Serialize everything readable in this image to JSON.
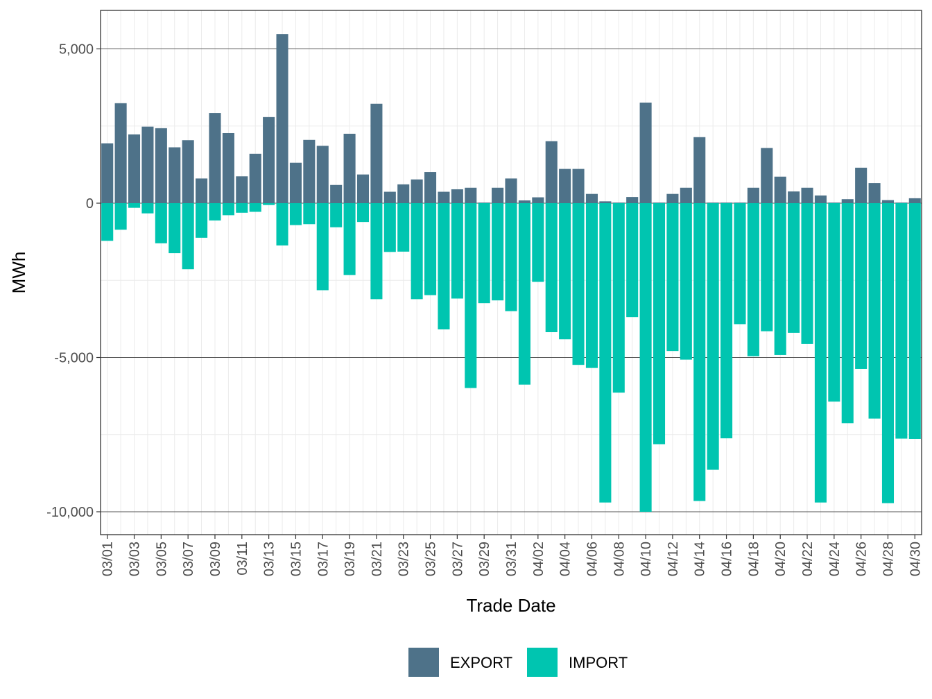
{
  "chart_data": {
    "type": "bar",
    "stacked": "diverging",
    "xlabel": "Trade Date",
    "ylabel": "MWh",
    "ylim": [
      -10000,
      6000
    ],
    "y_ticks": [
      5000,
      0,
      -5000,
      -10000
    ],
    "y_tick_labels": [
      "5,000",
      "0",
      "-5,000",
      "-10,000"
    ],
    "grid": true,
    "legend_position": "bottom",
    "categories": [
      "03/01",
      "03/02",
      "03/03",
      "03/04",
      "03/05",
      "03/06",
      "03/07",
      "03/08",
      "03/09",
      "03/10",
      "03/11",
      "03/12",
      "03/13",
      "03/14",
      "03/15",
      "03/16",
      "03/17",
      "03/18",
      "03/19",
      "03/20",
      "03/21",
      "03/22",
      "03/23",
      "03/24",
      "03/25",
      "03/26",
      "03/27",
      "03/28",
      "03/29",
      "03/30",
      "03/31",
      "04/01",
      "04/02",
      "04/03",
      "04/04",
      "04/05",
      "04/06",
      "04/07",
      "04/08",
      "04/09",
      "04/10",
      "04/11",
      "04/12",
      "04/13",
      "04/14",
      "04/15",
      "04/16",
      "04/17",
      "04/18",
      "04/19",
      "04/20",
      "04/21",
      "04/22",
      "04/23",
      "04/24",
      "04/25",
      "04/26",
      "04/27",
      "04/28",
      "04/29",
      "04/30"
    ],
    "x_tick_labels": [
      "03/01",
      "03/03",
      "03/05",
      "03/07",
      "03/09",
      "03/11",
      "03/13",
      "03/15",
      "03/17",
      "03/19",
      "03/21",
      "03/23",
      "03/25",
      "03/27",
      "03/29",
      "03/31",
      "04/02",
      "04/04",
      "04/06",
      "04/08",
      "04/10",
      "04/12",
      "04/14",
      "04/16",
      "04/18",
      "04/20",
      "04/22",
      "04/24",
      "04/26",
      "04/28",
      "04/30"
    ],
    "series": [
      {
        "name": "EXPORT",
        "color": "#4e7289",
        "values": [
          1940,
          3240,
          2230,
          2480,
          2430,
          1810,
          2040,
          800,
          2920,
          2270,
          870,
          1600,
          2790,
          5480,
          1310,
          2050,
          1860,
          590,
          2250,
          930,
          3220,
          370,
          610,
          770,
          1010,
          370,
          450,
          500,
          20,
          500,
          800,
          90,
          190,
          2010,
          1110,
          1110,
          300,
          60,
          20,
          200,
          3260,
          20,
          300,
          500,
          2140,
          20,
          20,
          20,
          500,
          1790,
          860,
          380,
          500,
          250,
          20,
          130,
          1150,
          650,
          100,
          20,
          160
        ]
      },
      {
        "name": "IMPORT",
        "color": "#00c5b0",
        "values": [
          -1220,
          -860,
          -150,
          -330,
          -1300,
          -1620,
          -2140,
          -1120,
          -560,
          -390,
          -310,
          -280,
          -60,
          -1370,
          -710,
          -680,
          -2820,
          -780,
          -2330,
          -610,
          -3110,
          -1580,
          -1570,
          -3110,
          -2980,
          -4090,
          -3090,
          -5990,
          -3240,
          -3150,
          -3500,
          -5880,
          -2550,
          -4180,
          -4410,
          -5240,
          -5340,
          -9700,
          -6140,
          -3690,
          -10000,
          -7810,
          -4790,
          -5070,
          -9650,
          -8640,
          -7620,
          -3920,
          -4960,
          -4150,
          -4920,
          -4200,
          -4560,
          -9700,
          -6430,
          -7130,
          -5370,
          -6980,
          -9720,
          -7630,
          -7640
        ]
      }
    ]
  }
}
